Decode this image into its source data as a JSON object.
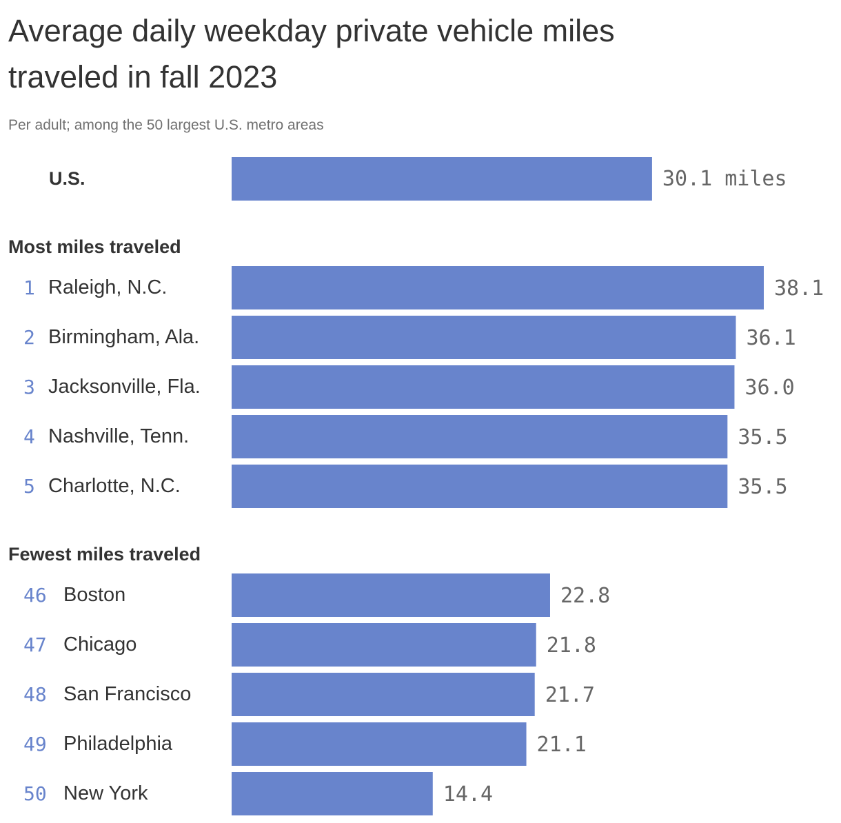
{
  "title_line1": "Average daily weekday private vehicle miles",
  "title_line2": "traveled in fall 2023",
  "subtitle": "Per adult; among the 50 largest U.S. metro areas",
  "colors": {
    "bar": "#6884cc",
    "rank": "#6884cc"
  },
  "chart_data": {
    "type": "bar",
    "orientation": "horizontal",
    "xlim": [
      0,
      38.1
    ],
    "us": {
      "label": "U.S.",
      "value": 30.1,
      "value_label": "30.1 miles"
    },
    "groups": [
      {
        "heading": "Most miles traveled",
        "rows": [
          {
            "rank": "1",
            "name": "Raleigh, N.C.",
            "value": 38.1,
            "value_label": "38.1"
          },
          {
            "rank": "2",
            "name": "Birmingham, Ala.",
            "value": 36.1,
            "value_label": "36.1"
          },
          {
            "rank": "3",
            "name": "Jacksonville, Fla.",
            "value": 36.0,
            "value_label": "36.0"
          },
          {
            "rank": "4",
            "name": "Nashville, Tenn.",
            "value": 35.5,
            "value_label": "35.5"
          },
          {
            "rank": "5",
            "name": "Charlotte, N.C.",
            "value": 35.5,
            "value_label": "35.5"
          }
        ]
      },
      {
        "heading": "Fewest miles traveled",
        "rows": [
          {
            "rank": "46",
            "name": "Boston",
            "value": 22.8,
            "value_label": "22.8"
          },
          {
            "rank": "47",
            "name": "Chicago",
            "value": 21.8,
            "value_label": "21.8"
          },
          {
            "rank": "48",
            "name": "San Francisco",
            "value": 21.7,
            "value_label": "21.7"
          },
          {
            "rank": "49",
            "name": "Philadelphia",
            "value": 21.1,
            "value_label": "21.1"
          },
          {
            "rank": "50",
            "name": "New York",
            "value": 14.4,
            "value_label": "14.4"
          }
        ]
      }
    ]
  }
}
